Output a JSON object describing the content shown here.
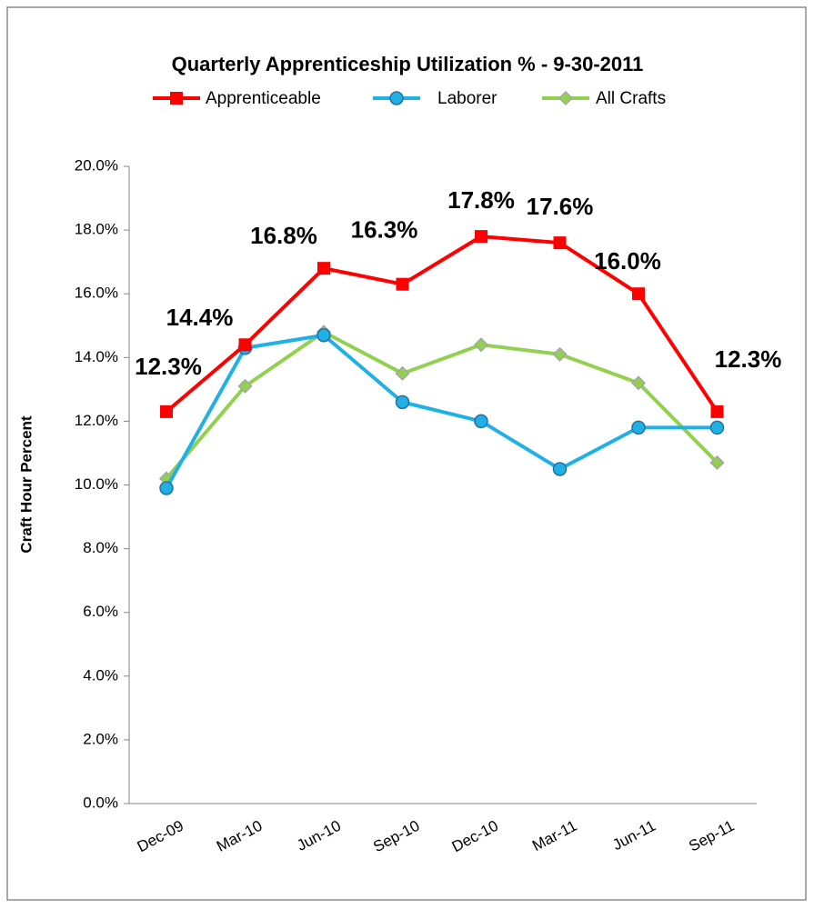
{
  "chart_data": {
    "type": "line",
    "title": "Quarterly  Apprenticeship Utilization % - 9-30-2011",
    "y_label": "Craft Hour Percent",
    "categories": [
      "Dec-09",
      "Mar-10",
      "Jun-10",
      "Sep-10",
      "Dec-10",
      "Mar-11",
      "Jun-11",
      "Sep-11"
    ],
    "series": [
      {
        "name": "Apprenticeable",
        "color": "#ff0000",
        "marker": "square",
        "values": [
          12.3,
          14.4,
          16.8,
          16.3,
          17.8,
          17.6,
          16.0,
          12.3
        ],
        "value_labels": [
          "12.3%",
          "14.4%",
          "16.8%",
          "16.3%",
          "17.8%",
          "17.6%",
          "16.0%",
          "12.3%"
        ]
      },
      {
        "name": "Laborer",
        "color": "#1fb1e6",
        "marker": "circle",
        "values": [
          9.9,
          14.3,
          14.7,
          12.6,
          12.0,
          10.5,
          11.8,
          11.8
        ]
      },
      {
        "name": "All Crafts",
        "color": "#92d050",
        "marker": "diamond",
        "values": [
          10.2,
          13.1,
          14.8,
          13.5,
          14.4,
          14.1,
          13.2,
          10.7
        ]
      }
    ],
    "ylim": [
      0,
      20
    ],
    "yticks": [
      {
        "value": 0,
        "label": "0.0%"
      },
      {
        "value": 2,
        "label": "2.0%"
      },
      {
        "value": 4,
        "label": "4.0%"
      },
      {
        "value": 6,
        "label": "6.0%"
      },
      {
        "value": 8,
        "label": "8.0%"
      },
      {
        "value": 10,
        "label": "10.0%"
      },
      {
        "value": 12,
        "label": "12.0%"
      },
      {
        "value": 14,
        "label": "14.0%"
      },
      {
        "value": 16,
        "label": "16.0%"
      },
      {
        "value": 18,
        "label": "18.0%"
      },
      {
        "value": 20,
        "label": "20.0%"
      }
    ],
    "legend": "top",
    "grid": false
  }
}
